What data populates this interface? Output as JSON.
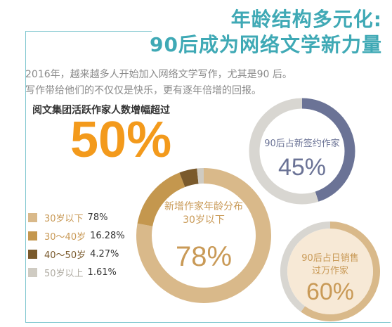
{
  "header": {
    "title_line1": "年龄结构多元化:",
    "title_line2": "90后成为网络文学新力量"
  },
  "intro": {
    "line1": "2016年，越来越多人开始加入网络文学写作，尤其是90 后。",
    "line2": "写作带给他们的不仅仅是快乐，更有逐年倍增的回报。"
  },
  "highlight": {
    "label": "阅文集团活跃作家人数增幅超过",
    "value": "50%"
  },
  "colors": {
    "accent_teal": "#3fa9b5",
    "highlight_orange": "#f39a1c",
    "navy": "#6b7396",
    "tan": "#d9b98a",
    "track_gray": "#d8d6d1",
    "peach_fill": "#f7e9d6"
  },
  "chart_data": [
    {
      "type": "pie",
      "subtype": "donut",
      "label_lines": [
        "新增作家年龄分布",
        "30岁以下"
      ],
      "center_value": "78%",
      "categories": [
        "30岁以下",
        "30～40岁",
        "40～50岁",
        "50岁以上"
      ],
      "values": [
        78,
        16.28,
        4.27,
        1.61
      ],
      "value_labels": [
        "78%",
        "16.28%",
        "4.27%",
        "1.61%"
      ],
      "colors": [
        "#d9b98a",
        "#c4974e",
        "#7a5a2c",
        "#cfcbc2"
      ],
      "legend_placement": "left"
    },
    {
      "type": "pie",
      "subtype": "donut",
      "label_lines": [
        "90后占新签约作家"
      ],
      "center_value": "45%",
      "values": [
        45,
        55
      ],
      "colors": [
        "#6b7396",
        "#d8d6d1"
      ]
    },
    {
      "type": "pie",
      "subtype": "donut",
      "label_lines": [
        "90后占日销售",
        "过万作家"
      ],
      "center_value": "60%",
      "values": [
        60,
        40
      ],
      "colors": [
        "#d9b98a",
        "#d8d6d1"
      ]
    }
  ]
}
